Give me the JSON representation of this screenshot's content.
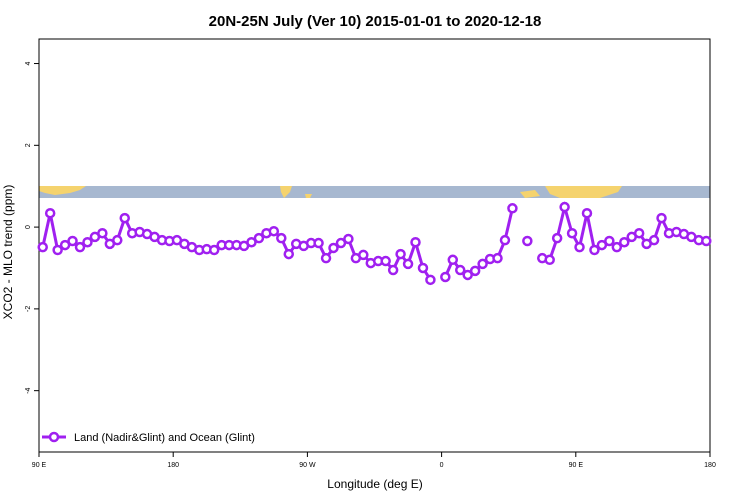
{
  "chart_data": {
    "type": "line",
    "title": "20N-25N July (Ver 10)   2015-01-01 to 2020-12-18",
    "x_label": "Longitude (deg E)",
    "y_label": "XCO2 - MLO trend (ppm)",
    "xlim": [
      90,
      540
    ],
    "xticks": [
      {
        "value": 90,
        "label": "90 E"
      },
      180,
      {
        "value": 270,
        "label": "90 W"
      },
      {
        "value": 360,
        "label": "0"
      },
      {
        "value": 450,
        "label": "90 E"
      },
      {
        "value": 540,
        "label": "180"
      }
    ],
    "ylim": [
      -5.5,
      4.6
    ],
    "yticks": [
      -4,
      -2,
      0,
      2,
      4
    ],
    "legend": "bottom-left",
    "x": [
      92.5,
      97.5,
      102.5,
      107.5,
      112.5,
      117.5,
      122.5,
      127.5,
      132.5,
      137.5,
      142.5,
      147.5,
      152.5,
      157.5,
      162.5,
      167.5,
      172.5,
      177.5,
      182.5,
      187.5,
      192.5,
      197.5,
      202.5,
      207.5,
      212.5,
      217.5,
      222.5,
      227.5,
      232.5,
      237.5,
      242.5,
      247.5,
      252.5,
      257.5,
      262.5,
      267.5,
      272.5,
      277.5,
      282.5,
      287.5,
      292.5,
      297.5,
      302.5,
      307.5,
      312.5,
      317.5,
      322.5,
      327.5,
      332.5,
      337.5,
      342.5,
      347.5,
      352.5,
      357.5,
      362.5,
      367.5,
      372.5,
      377.5,
      382.5,
      387.5,
      392.5,
      397.5,
      402.5,
      407.5,
      412.5,
      417.5,
      422.5,
      427.5,
      432.5,
      437.5,
      442.5,
      447.5,
      452.5,
      457.5,
      462.5,
      467.5,
      472.5,
      477.5,
      482.5,
      487.5,
      492.5,
      497.5,
      502.5,
      507.5,
      512.5,
      517.5,
      522.5,
      527.5,
      532.5,
      537.5
    ],
    "series": [
      {
        "name": "Land (Nadir&Glint) and Ocean (Glint)",
        "color": "#a020f0",
        "values": [
          -0.49,
          0.34,
          -0.56,
          -0.44,
          -0.34,
          -0.49,
          -0.37,
          -0.24,
          -0.15,
          -0.41,
          -0.32,
          0.22,
          -0.15,
          -0.12,
          -0.17,
          -0.24,
          -0.32,
          -0.34,
          -0.32,
          -0.41,
          -0.49,
          -0.56,
          -0.54,
          -0.56,
          -0.44,
          -0.44,
          -0.44,
          -0.46,
          -0.37,
          -0.27,
          -0.15,
          -0.1,
          -0.27,
          -0.66,
          -0.41,
          -0.46,
          -0.39,
          -0.39,
          -0.76,
          -0.51,
          -0.39,
          -0.29,
          -0.76,
          -0.68,
          -0.88,
          -0.83,
          -0.83,
          -1.05,
          -0.66,
          -0.9,
          -0.37,
          -1.0,
          -1.29,
          null,
          -1.22,
          -0.8,
          -1.05,
          -1.17,
          -1.07,
          -0.9,
          -0.78,
          -0.76,
          -0.32,
          0.46,
          null,
          -0.34,
          null,
          -0.76,
          -0.8,
          -0.27,
          0.49,
          -0.15,
          -0.49,
          0.34,
          -0.56,
          -0.44,
          -0.34,
          -0.49,
          -0.37,
          -0.24,
          -0.15,
          -0.41,
          -0.32,
          0.22,
          -0.15,
          -0.12,
          -0.17,
          -0.24,
          -0.32,
          -0.34
        ]
      }
    ]
  }
}
